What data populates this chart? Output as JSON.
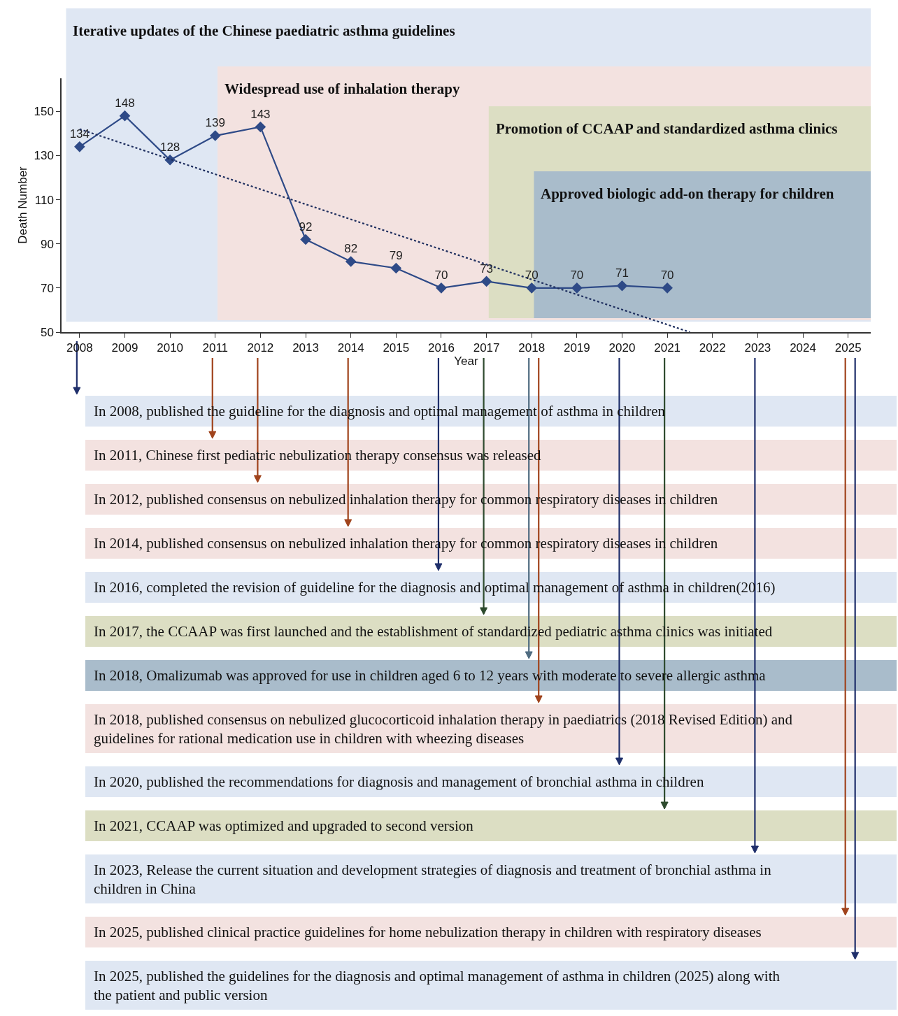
{
  "chart_data": {
    "type": "line",
    "xlabel": "Year",
    "ylabel": "Death Number",
    "x": [
      2008,
      2009,
      2010,
      2011,
      2012,
      2013,
      2014,
      2015,
      2016,
      2017,
      2018,
      2019,
      2020,
      2021
    ],
    "series": [
      {
        "color": "#2e4a87",
        "values": [
          134,
          148,
          128,
          139,
          143,
          92,
          82,
          79,
          70,
          73,
          70,
          70,
          71,
          70
        ],
        "value_labels": [
          "134",
          "148",
          "128",
          "139",
          "143",
          "92",
          "82",
          "79",
          "70",
          "73",
          "70",
          "70",
          "71",
          "70"
        ]
      },
      {
        "type": "line",
        "color": "#1f2f5f",
        "line_style": "dotted",
        "marker": "none",
        "x": [
          2008,
          2021.5
        ],
        "values": [
          142,
          50
        ]
      }
    ],
    "marker": "diamond",
    "xlim": [
      2007.6,
      2025.5
    ],
    "xticks": [
      2008,
      2009,
      2010,
      2011,
      2012,
      2013,
      2014,
      2015,
      2016,
      2017,
      2018,
      2019,
      2020,
      2021,
      2022,
      2023,
      2024,
      2025
    ],
    "ylim": [
      50,
      165
    ],
    "yticks": [
      50,
      70,
      90,
      110,
      130,
      150
    ],
    "grid": false,
    "bands": [
      {
        "axis": "x",
        "from": 2007.7,
        "to": 2025.5,
        "label": "Iterative updates of the Chinese paediatric asthma guidelines",
        "color": "#dfe7f3"
      },
      {
        "axis": "x",
        "from": 2011.05,
        "to": 2025.5,
        "label": "Widespread use of inhalation therapy",
        "color": "#f3e2e0"
      },
      {
        "axis": "x",
        "from": 2017.05,
        "to": 2025.5,
        "label": "Promotion of CCAAP and standardized asthma clinics",
        "color": "#dcdec3"
      },
      {
        "axis": "x",
        "from": 2018.05,
        "to": 2025.5,
        "label": "Approved biologic add-on therapy for children",
        "color": "#a9bccb"
      }
    ],
    "annotations": [
      "In 2008, published the guideline for the diagnosis and optimal management of asthma in children",
      "In 2011, Chinese first pediatric nebulization therapy consensus was released",
      "In 2012, published consensus on nebulized inhalation therapy for common respiratory diseases in children",
      "In 2014, published consensus on nebulized inhalation therapy for common respiratory diseases in children",
      "In 2016, completed the revision of guideline for the diagnosis and optimal management of asthma in children(2016)",
      "In 2017, the CCAAP was first launched and the establishment of standardized pediatric asthma clinics was initiated",
      "In 2018, Omalizumab was approved for use in children aged 6 to 12 years with moderate to severe allergic asthma",
      "In 2018, published consensus on nebulized glucocorticoid inhalation therapy in paediatrics (2018 Revised Edition) and guidelines for rational medication use in children with wheezing diseases",
      "In 2020, published the recommendations for diagnosis and management of bronchial asthma in children",
      "In 2021, CCAAP was optimized and upgraded to second version",
      "In 2023, Release the current situation and development strategies of diagnosis and treatment of bronchial asthma in children in China",
      "In 2025, published clinical practice guidelines for home nebulization therapy in children with respiratory diseases",
      "In 2025, published the guidelines for the diagnosis and optimal management of asthma in children (2025) along with the patient and public version"
    ]
  }
}
